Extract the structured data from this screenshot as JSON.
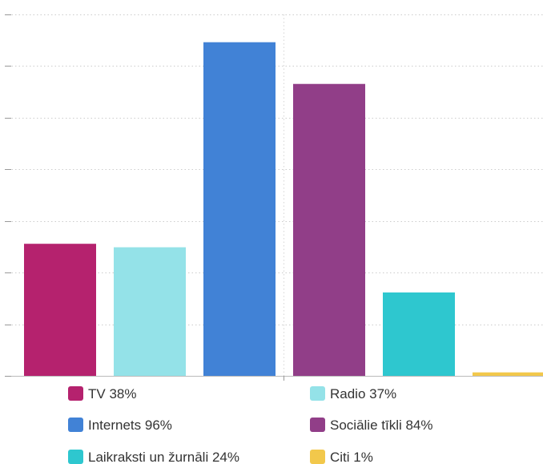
{
  "chart_data": {
    "type": "bar",
    "categories": [
      "TV",
      "Radio",
      "Internets",
      "Sociālie tīkli",
      "Laikraksti un žurnāli",
      "Citi"
    ],
    "series": [
      {
        "values": [
          38,
          37,
          96,
          84,
          24,
          1
        ]
      }
    ],
    "colors": [
      "#b5226e",
      "#94e2e8",
      "#4182d6",
      "#913e88",
      "#2ec7cf",
      "#f2c84b"
    ],
    "legend_labels": [
      "TV 38%",
      "Radio 37%",
      "Internets 96%",
      "Sociālie tīkli 84%",
      "Laikraksti un žurnāli 24%",
      "Citi 1%"
    ],
    "unit": "%",
    "ylim": [
      0,
      104
    ],
    "grid": "horizontal dotted",
    "legend_position": "bottom"
  }
}
